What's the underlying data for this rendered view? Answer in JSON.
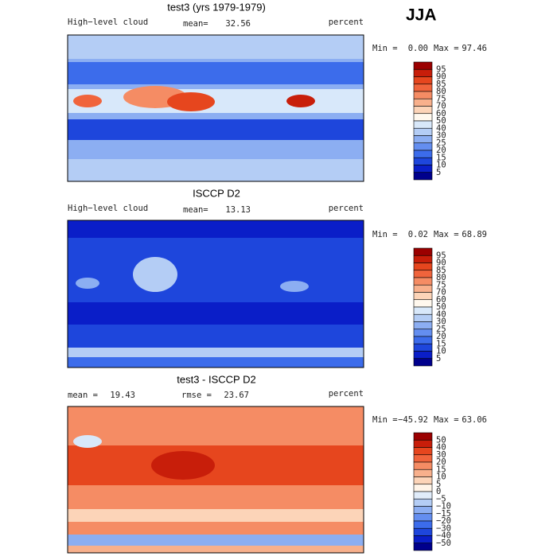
{
  "season": "JJA",
  "panels": [
    {
      "title": "test3 (yrs 1979-1979)",
      "variable": "High−level cloud",
      "mean_label": "mean=",
      "mean": "32.56",
      "units": "percent",
      "min_label": "Min =",
      "min": "0.00",
      "max_label": "Max =",
      "max": "97.46",
      "colorbar": {
        "labels": [
          "95",
          "90",
          "85",
          "80",
          "75",
          "70",
          "60",
          "50",
          "40",
          "30",
          "25",
          "20",
          "15",
          "10",
          "5"
        ],
        "colors": [
          "#9b0000",
          "#c81e0a",
          "#e6461e",
          "#f0643c",
          "#f58c64",
          "#f8b08c",
          "#fcd4b8",
          "#fff8ee",
          "#d8e8fa",
          "#b4cdf5",
          "#8caef2",
          "#648ef0",
          "#3c6ceb",
          "#1e46dc",
          "#0a1ec8",
          "#00008c"
        ]
      }
    },
    {
      "title": "ISCCP D2",
      "variable": "High−level cloud",
      "mean_label": "mean=",
      "mean": "13.13",
      "units": "percent",
      "min_label": "Min =",
      "min": "0.02",
      "max_label": "Max =",
      "max": "68.89",
      "colorbar": {
        "labels": [
          "95",
          "90",
          "85",
          "80",
          "75",
          "70",
          "60",
          "50",
          "40",
          "30",
          "25",
          "20",
          "15",
          "10",
          "5"
        ],
        "colors": [
          "#9b0000",
          "#c81e0a",
          "#e6461e",
          "#f0643c",
          "#f58c64",
          "#f8b08c",
          "#fcd4b8",
          "#fff8ee",
          "#d8e8fa",
          "#b4cdf5",
          "#8caef2",
          "#648ef0",
          "#3c6ceb",
          "#1e46dc",
          "#0a1ec8",
          "#00008c"
        ]
      }
    },
    {
      "title": "test3 - ISCCP D2",
      "mean_label": "mean =",
      "mean": "19.43",
      "rmse_label": "rmse =",
      "rmse": "23.67",
      "units": "percent",
      "min_label": "Min =",
      "min": "−45.92",
      "max_label": "Max =",
      "max": "63.06",
      "colorbar": {
        "labels": [
          "50",
          "40",
          "30",
          "20",
          "15",
          "10",
          "5",
          "0",
          "−5",
          "−10",
          "−15",
          "−20",
          "−30",
          "−40",
          "−50"
        ],
        "colors": [
          "#9b0000",
          "#c81e0a",
          "#e6461e",
          "#f0643c",
          "#f58c64",
          "#f8b08c",
          "#fcd4b8",
          "#fff4e8",
          "#e0ecfa",
          "#b4cdf5",
          "#8caef2",
          "#648ef0",
          "#3c6ceb",
          "#1e46dc",
          "#0a1ec8",
          "#00008c"
        ]
      }
    }
  ]
}
